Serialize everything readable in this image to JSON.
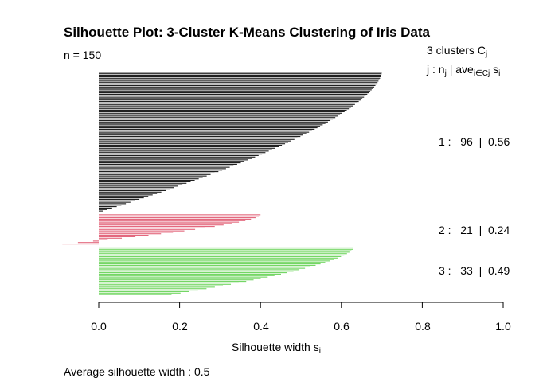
{
  "chart_data": {
    "type": "bar",
    "orientation": "horizontal",
    "title": "Silhouette Plot: 3-Cluster K-Means Clustering of Iris Data",
    "n_text": "n = 150",
    "xlabel": "Silhouette width",
    "xlabel_sub": "i",
    "xlabel_var": "s",
    "xlim": [
      0.0,
      1.0
    ],
    "xticks": [
      "0.0",
      "0.2",
      "0.4",
      "0.6",
      "0.8",
      "1.0"
    ],
    "average_text": "Average silhouette width :  0.5",
    "header_line1": "3  clusters  C",
    "header_line1_sub": "j",
    "header_line2_a": "j :  n",
    "header_line2_sub1": "j",
    "header_line2_b": " | ave",
    "header_line2_sub2": "i∈Cj",
    "header_line2_c": "  s",
    "header_line2_sub3": "i",
    "clusters": [
      {
        "label": "1 :   96  |  0.56",
        "n": 96,
        "avg": 0.56,
        "color": "#000000",
        "max": 0.7,
        "min": 0.01
      },
      {
        "label": "2 :   21  |  0.24",
        "n": 21,
        "avg": 0.24,
        "color": "#DF536B",
        "max": 0.4,
        "min": -0.09
      },
      {
        "label": "3 :   33  |  0.49",
        "n": 33,
        "avg": 0.49,
        "color": "#61D04F",
        "max": 0.63,
        "min": 0.18
      }
    ]
  }
}
